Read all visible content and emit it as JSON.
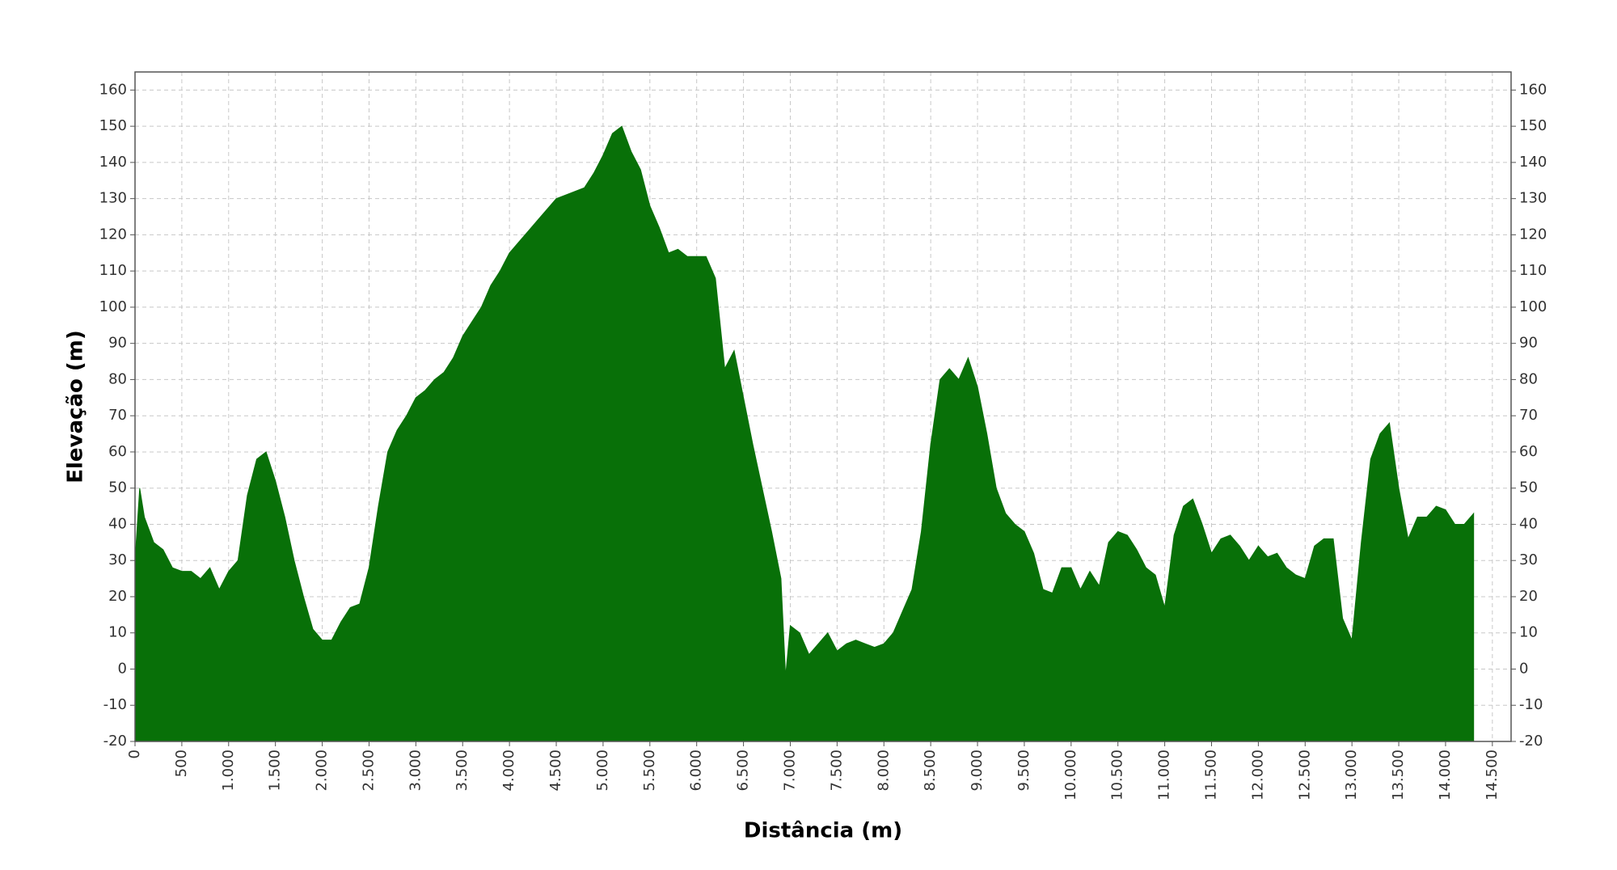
{
  "chart_data": {
    "type": "area",
    "x_label": "Distância (m)",
    "y_label": "Elevação (m)",
    "x": [
      0,
      50,
      100,
      200,
      300,
      400,
      500,
      600,
      700,
      800,
      900,
      1000,
      1100,
      1200,
      1300,
      1400,
      1500,
      1600,
      1700,
      1800,
      1900,
      2000,
      2100,
      2200,
      2300,
      2400,
      2500,
      2600,
      2700,
      2800,
      2900,
      3000,
      3100,
      3200,
      3300,
      3400,
      3500,
      3600,
      3700,
      3800,
      3900,
      4000,
      4100,
      4200,
      4300,
      4400,
      4500,
      4600,
      4700,
      4800,
      4900,
      5000,
      5100,
      5200,
      5300,
      5400,
      5500,
      5600,
      5700,
      5800,
      5900,
      6000,
      6100,
      6200,
      6300,
      6400,
      6500,
      6600,
      6700,
      6800,
      6900,
      6950,
      7000,
      7100,
      7200,
      7300,
      7400,
      7500,
      7600,
      7700,
      7800,
      7900,
      8000,
      8100,
      8200,
      8300,
      8400,
      8500,
      8600,
      8700,
      8800,
      8900,
      9000,
      9100,
      9200,
      9300,
      9400,
      9500,
      9600,
      9700,
      9800,
      9900,
      10000,
      10100,
      10200,
      10300,
      10400,
      10500,
      10600,
      10700,
      10800,
      10900,
      11000,
      11100,
      11200,
      11300,
      11400,
      11500,
      11600,
      11700,
      11800,
      11900,
      12000,
      12100,
      12200,
      12300,
      12400,
      12500,
      12600,
      12700,
      12800,
      12900,
      13000,
      13100,
      13200,
      13300,
      13400,
      13500,
      13600,
      13700,
      13800,
      13900,
      14000,
      14100,
      14200,
      14300
    ],
    "series": [
      {
        "color": "#087008",
        "values": [
          30,
          50,
          42,
          35,
          33,
          28,
          27,
          27,
          25,
          28,
          22,
          27,
          30,
          48,
          58,
          60,
          52,
          42,
          30,
          20,
          11,
          8,
          8,
          13,
          17,
          18,
          28,
          45,
          60,
          66,
          70,
          75,
          77,
          80,
          82,
          86,
          92,
          96,
          100,
          106,
          110,
          115,
          118,
          121,
          124,
          127,
          130,
          131,
          132,
          133,
          137,
          142,
          148,
          150,
          143,
          138,
          128,
          122,
          115,
          116,
          114,
          114,
          114,
          108,
          83,
          88,
          75,
          62,
          50,
          38,
          25,
          -2,
          12,
          10,
          4,
          7,
          10,
          5,
          7,
          8,
          7,
          6,
          7,
          10,
          16,
          22,
          38,
          62,
          80,
          83,
          80,
          86,
          78,
          65,
          50,
          43,
          40,
          38,
          32,
          22,
          21,
          28,
          28,
          22,
          27,
          23,
          35,
          38,
          37,
          33,
          28,
          26,
          17,
          37,
          45,
          47,
          40,
          32,
          36,
          37,
          34,
          30,
          34,
          31,
          32,
          28,
          26,
          25,
          34,
          36,
          36,
          14,
          8,
          35,
          58,
          65,
          68,
          50,
          36,
          42,
          42,
          45,
          44,
          40,
          40,
          43
        ]
      }
    ],
    "xlim": [
      0,
      14700
    ],
    "ylim": [
      -20,
      165
    ],
    "xticks": [
      0,
      500,
      {
        "value": 1000,
        "label": "1.000"
      },
      {
        "value": 1500,
        "label": "1.500"
      },
      {
        "value": 2000,
        "label": "2.000"
      },
      {
        "value": 2500,
        "label": "2.500"
      },
      {
        "value": 3000,
        "label": "3.000"
      },
      {
        "value": 3500,
        "label": "3.500"
      },
      {
        "value": 4000,
        "label": "4.000"
      },
      {
        "value": 4500,
        "label": "4.500"
      },
      {
        "value": 5000,
        "label": "5.000"
      },
      {
        "value": 5500,
        "label": "5.500"
      },
      {
        "value": 6000,
        "label": "6.000"
      },
      {
        "value": 6500,
        "label": "6.500"
      },
      {
        "value": 7000,
        "label": "7.000"
      },
      {
        "value": 7500,
        "label": "7.500"
      },
      {
        "value": 8000,
        "label": "8.000"
      },
      {
        "value": 8500,
        "label": "8.500"
      },
      {
        "value": 9000,
        "label": "9.000"
      },
      {
        "value": 9500,
        "label": "9.500"
      },
      {
        "value": 10000,
        "label": "10.000"
      },
      {
        "value": 10500,
        "label": "10.500"
      },
      {
        "value": 11000,
        "label": "11.000"
      },
      {
        "value": 11500,
        "label": "11.500"
      },
      {
        "value": 12000,
        "label": "12.000"
      },
      {
        "value": 12500,
        "label": "12.500"
      },
      {
        "value": 13000,
        "label": "13.000"
      },
      {
        "value": 13500,
        "label": "13.500"
      },
      {
        "value": 14000,
        "label": "14.000"
      },
      {
        "value": 14500,
        "label": "14.500"
      }
    ],
    "yticks": [
      -20,
      -10,
      0,
      10,
      20,
      30,
      40,
      50,
      60,
      70,
      80,
      90,
      100,
      110,
      120,
      130,
      140,
      150,
      160
    ],
    "grid": true
  }
}
